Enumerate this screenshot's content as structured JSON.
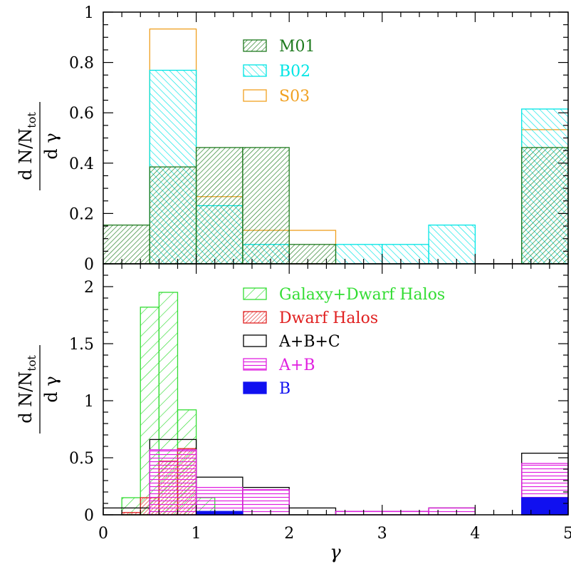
{
  "chart_data": [
    {
      "type": "histogram",
      "panel": "top",
      "ylabel": {
        "numerator": "d N/N",
        "subscript": "tot",
        "denominator": "d γ"
      },
      "xlim": [
        0,
        5
      ],
      "ylim": [
        0,
        1
      ],
      "yticks": [
        "0",
        "0.2",
        "0.4",
        "0.6",
        "0.8",
        "1"
      ],
      "ytick_values": [
        0,
        0.2,
        0.4,
        0.6,
        0.8,
        1
      ],
      "legend_position": "top-center",
      "series": [
        {
          "name": "M01",
          "color": "#1e7a1e",
          "fill": "dense-diagonal-hatch",
          "zorder": 3,
          "bins": [
            [
              0,
              0.5,
              0.154
            ],
            [
              0.5,
              1.0,
              0.385
            ],
            [
              1.0,
              1.5,
              0.462
            ],
            [
              1.5,
              2.0,
              0.462
            ],
            [
              2.0,
              2.5,
              0.077
            ],
            [
              4.5,
              5.0,
              0.462
            ]
          ]
        },
        {
          "name": "B02",
          "color": "#00e5e5",
          "fill": "back-diagonal-hatch",
          "zorder": 2,
          "bins": [
            [
              0.5,
              1.0,
              0.769
            ],
            [
              1.0,
              1.5,
              0.231
            ],
            [
              1.5,
              2.0,
              0.077
            ],
            [
              2.5,
              3.0,
              0.077
            ],
            [
              3.0,
              3.5,
              0.077
            ],
            [
              3.5,
              4.0,
              0.154
            ],
            [
              4.5,
              5.0,
              0.615
            ]
          ]
        },
        {
          "name": "S03",
          "color": "#f0a020",
          "fill": "outline",
          "zorder": 1,
          "bins": [
            [
              0.5,
              1.0,
              0.933
            ],
            [
              1.0,
              1.5,
              0.267
            ],
            [
              1.5,
              2.0,
              0.133
            ],
            [
              2.0,
              2.5,
              0.133
            ],
            [
              4.5,
              5.0,
              0.533
            ]
          ]
        }
      ]
    },
    {
      "type": "histogram",
      "panel": "bottom",
      "xlabel": "γ",
      "ylabel": {
        "numerator": "d N/N",
        "subscript": "tot",
        "denominator": "d γ"
      },
      "xlim": [
        0,
        5
      ],
      "ylim": [
        0,
        2.2
      ],
      "xticks": [
        "0",
        "1",
        "2",
        "3",
        "4",
        "5"
      ],
      "xtick_values": [
        0,
        1,
        2,
        3,
        4,
        5
      ],
      "yticks": [
        "0",
        "0.5",
        "1",
        "1.5",
        "2"
      ],
      "ytick_values": [
        0,
        0.5,
        1,
        1.5,
        2
      ],
      "legend_position": "top-center",
      "series": [
        {
          "name": "Galaxy+Dwarf Halos",
          "color": "#33dd33",
          "fill": "sparse-diagonal-hatch",
          "zorder": 1,
          "bins": [
            [
              0.2,
              0.4,
              0.15
            ],
            [
              0.4,
              0.6,
              1.82
            ],
            [
              0.6,
              0.8,
              1.95
            ],
            [
              0.8,
              1.0,
              0.92
            ],
            [
              1.0,
              1.2,
              0.15
            ]
          ]
        },
        {
          "name": "Dwarf Halos",
          "color": "#e02020",
          "fill": "dense-diagonal-hatch",
          "zorder": 2,
          "bins": [
            [
              0.2,
              0.4,
              0.02
            ],
            [
              0.4,
              0.6,
              0.15
            ],
            [
              0.6,
              0.8,
              0.47
            ],
            [
              0.8,
              1.0,
              0.58
            ]
          ]
        },
        {
          "name": "A+B+C",
          "color": "#000000",
          "fill": "outline",
          "zorder": 3,
          "bins": [
            [
              0.0,
              0.5,
              0.06
            ],
            [
              0.5,
              1.0,
              0.66
            ],
            [
              1.0,
              1.5,
              0.33
            ],
            [
              1.5,
              2.0,
              0.24
            ],
            [
              2.0,
              2.5,
              0.06
            ],
            [
              2.5,
              3.0,
              0.03
            ],
            [
              3.0,
              3.5,
              0.03
            ],
            [
              3.5,
              4.0,
              0.06
            ],
            [
              4.5,
              5.0,
              0.54
            ]
          ]
        },
        {
          "name": "A+B",
          "color": "#e020e0",
          "fill": "horizontal-hatch",
          "zorder": 4,
          "bins": [
            [
              0.5,
              1.0,
              0.57
            ],
            [
              1.0,
              1.5,
              0.24
            ],
            [
              1.5,
              2.0,
              0.22
            ],
            [
              2.5,
              3.0,
              0.03
            ],
            [
              3.0,
              3.5,
              0.03
            ],
            [
              3.5,
              4.0,
              0.06
            ],
            [
              4.5,
              5.0,
              0.45
            ]
          ]
        },
        {
          "name": "B",
          "color": "#1010f0",
          "fill": "solid",
          "zorder": 5,
          "bins": [
            [
              1.0,
              1.5,
              0.03
            ],
            [
              4.5,
              5.0,
              0.15
            ]
          ]
        }
      ]
    }
  ]
}
